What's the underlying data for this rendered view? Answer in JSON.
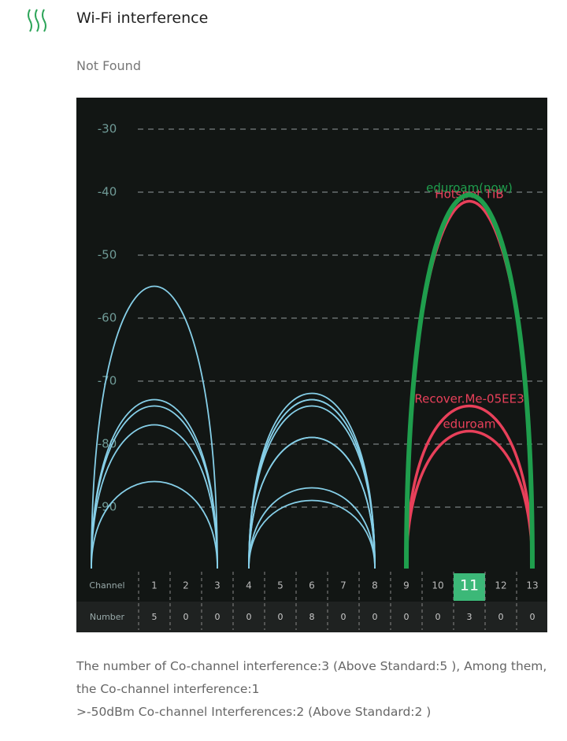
{
  "header": {
    "title": "Wi-Fi interference"
  },
  "status": "Not Found",
  "chart_data": {
    "type": "arc",
    "ylim": [
      -100,
      -25
    ],
    "yticks": [
      -30,
      -40,
      -50,
      -60,
      -70,
      -80,
      -90
    ],
    "grid": true,
    "xlim": [
      -1.5,
      13.5
    ],
    "xticks": [
      1,
      2,
      3,
      4,
      5,
      6,
      7,
      8,
      9,
      10,
      11,
      12,
      13
    ],
    "x_label": "Channel",
    "count_label": "Number",
    "counts": [
      5,
      0,
      0,
      0,
      0,
      8,
      0,
      0,
      0,
      0,
      3,
      0,
      0
    ],
    "highlight_channel": 11,
    "series": [
      {
        "color": "#86cfe8",
        "x": [
          1,
          1,
          1,
          1,
          1,
          6,
          6,
          6,
          6,
          6,
          6,
          6,
          6
        ],
        "values": [
          -55,
          -73,
          -74,
          -77,
          -86,
          -72,
          -73,
          -73,
          -74,
          -79,
          -79,
          -87,
          -89
        ]
      },
      {
        "name": "Hotspot TIB",
        "color": "#e8405a",
        "x": [
          11
        ],
        "values": [
          -41.5
        ]
      },
      {
        "name": "Recover.Me-05EE3",
        "color": "#e8405a",
        "x": [
          11
        ],
        "values": [
          -74
        ]
      },
      {
        "name": "eduroam",
        "color": "#e8405a",
        "x": [
          11
        ],
        "values": [
          -78
        ]
      },
      {
        "name": "eduroam(now)",
        "color": "#1f9e4d",
        "x": [
          11
        ],
        "values": [
          -40.5
        ]
      }
    ]
  },
  "footer": {
    "lines": [
      "The number of Co-channel interference:3 (Above Standard:5 ), Among them,",
      "the Co-channel interference:1",
      ">-50dBm Co-channel Interferences:2 (Above Standard:2 )"
    ]
  }
}
